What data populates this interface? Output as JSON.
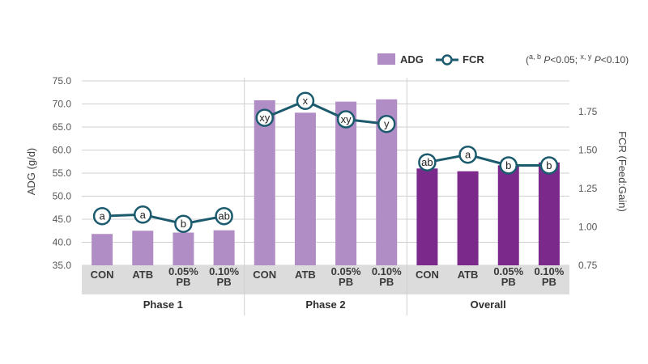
{
  "chart_data": {
    "type": "bar",
    "ylabel_left": "ADG (g/d)",
    "ylabel_right": "FCR (Feed:Gain)",
    "ylim_left": [
      35,
      75
    ],
    "ylim_right": [
      0.75,
      1.95
    ],
    "yticks_left": [
      "35.0",
      "40.0",
      "45.0",
      "50.0",
      "55.0",
      "60.0",
      "65.0",
      "70.0",
      "75.0"
    ],
    "yticks_right": [
      "0.75",
      "1.00",
      "1.25",
      "1.50",
      "1.75"
    ],
    "legend": {
      "bar_label": "ADG",
      "line_label": "FCR",
      "position": "top-right"
    },
    "note": "(a, b P<0.05; x, y P<0.10)",
    "note_parts": {
      "open": "(",
      "sup1": "a, b",
      "mid1": " P",
      "mid2": "<0.05; ",
      "sup2": "x, y",
      "mid3": " P",
      "tail": "<0.10)"
    },
    "colors": {
      "phase_bar": "#b08dc4",
      "overall_bar": "#7b2a8c",
      "fcr_line": "#1c5a6e",
      "band": "#dcdcdc",
      "grid": "#d0d0d0"
    },
    "groups": [
      {
        "name": "Phase 1",
        "categories": [
          [
            "CON"
          ],
          [
            "ATB"
          ],
          [
            "0.05%",
            "PB"
          ],
          [
            "0.10%",
            "PB"
          ]
        ],
        "adg": [
          41.8,
          42.5,
          42.1,
          42.6
        ],
        "fcr": [
          1.07,
          1.08,
          1.02,
          1.07
        ],
        "fcr_labels": [
          "a",
          "a",
          "b",
          "ab"
        ]
      },
      {
        "name": "Phase 2",
        "categories": [
          [
            "CON"
          ],
          [
            "ATB"
          ],
          [
            "0.05%",
            "PB"
          ],
          [
            "0.10%",
            "PB"
          ]
        ],
        "adg": [
          70.8,
          68.1,
          70.5,
          71.0
        ],
        "fcr": [
          1.71,
          1.82,
          1.7,
          1.67
        ],
        "fcr_labels": [
          "xy",
          "x",
          "xy",
          "y"
        ]
      },
      {
        "name": "Overall",
        "categories": [
          [
            "CON"
          ],
          [
            "ATB"
          ],
          [
            "0.05%",
            "PB"
          ],
          [
            "0.10%",
            "PB"
          ]
        ],
        "adg": [
          56.0,
          55.4,
          56.7,
          57.3
        ],
        "fcr": [
          1.42,
          1.47,
          1.4,
          1.4
        ],
        "fcr_labels": [
          "ab",
          "a",
          "b",
          "b"
        ]
      }
    ]
  }
}
